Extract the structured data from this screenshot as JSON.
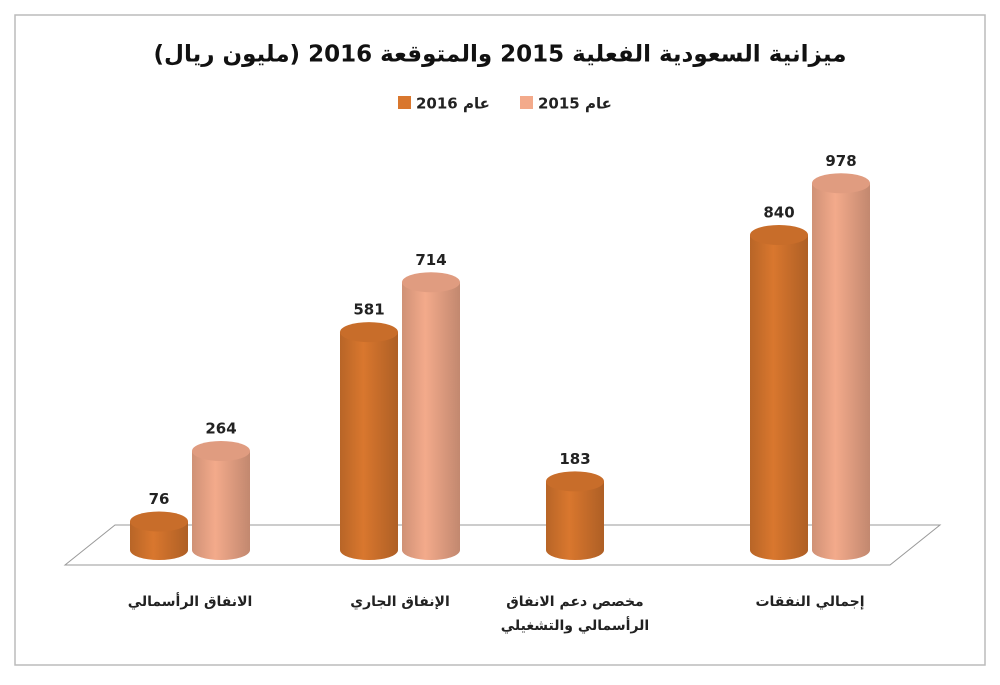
{
  "chart_data": {
    "type": "bar",
    "title": "ميزانية السعودية الفعلية 2015 والمتوقعة 2016 (مليون ريال)",
    "categories": [
      "الانفاق الرأسمالي",
      "الإنفاق الجاري",
      "مخصص دعم الانفاق الرأسمالي والتشغيلي",
      "إجمالي النفقات"
    ],
    "series": [
      {
        "name": "عام 2016",
        "color": "#d9772e",
        "values": [
          76,
          581,
          183,
          840
        ]
      },
      {
        "name": "عام 2015",
        "color": "#f3aa8b",
        "values": [
          264,
          714,
          null,
          978
        ]
      }
    ]
  }
}
